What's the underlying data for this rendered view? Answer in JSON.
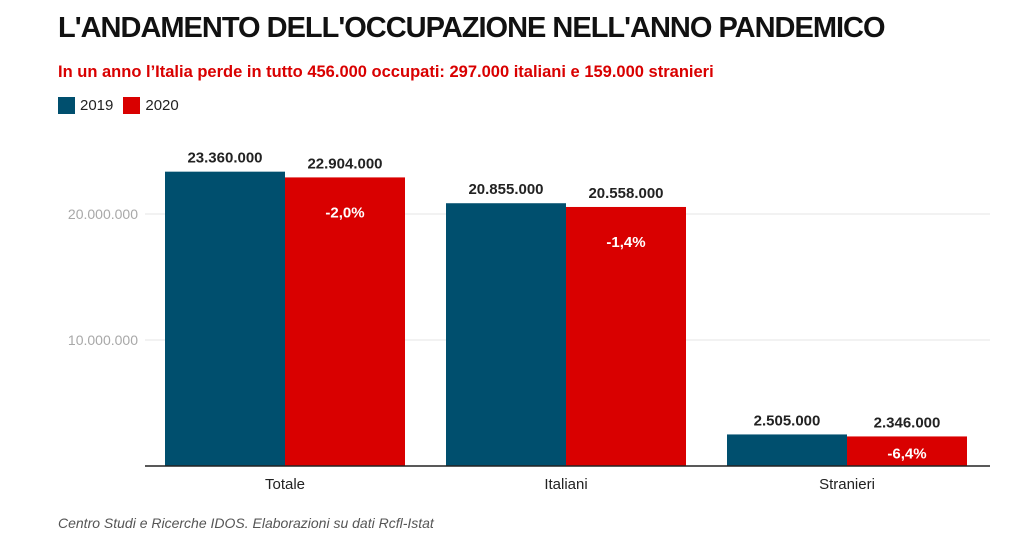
{
  "title": "L'ANDAMENTO DELL'OCCUPAZIONE NELL'ANNO PANDEMICO",
  "subtitle": "In un anno l’Italia perde in tutto 456.000 occupati: 297.000 italiani e 159.000 stranieri",
  "source": "Centro Studi e Ricerche IDOS. Elaborazioni su dati Rcfl-Istat",
  "colors": {
    "series_2019": "#004f6e",
    "series_2020": "#d90000",
    "grid": "#e6e6e6",
    "axis": "#222222",
    "tick_label": "#a8a8a8"
  },
  "chart_data": {
    "type": "bar",
    "categories": [
      "Totale",
      "Italiani",
      "Stranieri"
    ],
    "series": [
      {
        "name": "2019",
        "values": [
          23360000,
          20855000,
          2505000
        ],
        "labels": [
          "23.360.000",
          "20.855.000",
          "2.505.000"
        ]
      },
      {
        "name": "2020",
        "values": [
          22904000,
          20558000,
          2346000
        ],
        "labels": [
          "22.904.000",
          "20.558.000",
          "2.346.000"
        ]
      }
    ],
    "change_labels": [
      "-2,0%",
      "-1,4%",
      "-6,4%"
    ],
    "yticks": [
      10000000,
      20000000
    ],
    "ytick_labels": [
      "10.000.000",
      "20.000.000"
    ],
    "ylim": [
      0,
      25000000
    ],
    "grid": true,
    "legend": "top-left"
  }
}
